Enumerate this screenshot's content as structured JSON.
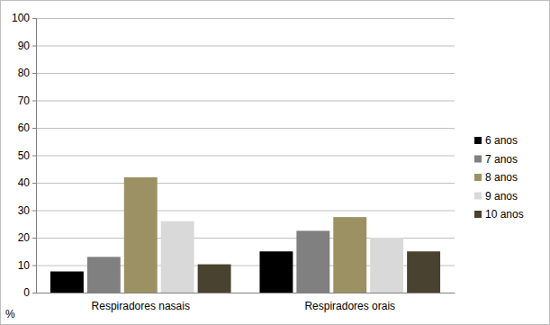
{
  "chart_data": {
    "type": "bar",
    "y_label": "%",
    "categories": [
      "Respiradores nasais",
      "Respiradores orais"
    ],
    "series": [
      {
        "name": "6 anos",
        "color": "#000000",
        "values": [
          7.7,
          15
        ]
      },
      {
        "name": "7 anos",
        "color": "#808080",
        "values": [
          13,
          22.5
        ]
      },
      {
        "name": "8 anos",
        "color": "#9b9163",
        "values": [
          42,
          27.5
        ]
      },
      {
        "name": "9 anos",
        "color": "#d9d9d9",
        "values": [
          26,
          20
        ]
      },
      {
        "name": "10 anos",
        "color": "#4a4230",
        "values": [
          10.3,
          15
        ]
      }
    ],
    "ylim": [
      0,
      100
    ],
    "yticks": [
      0,
      10,
      20,
      30,
      40,
      50,
      60,
      70,
      80,
      90,
      100
    ],
    "grid": true,
    "legend": "right"
  }
}
